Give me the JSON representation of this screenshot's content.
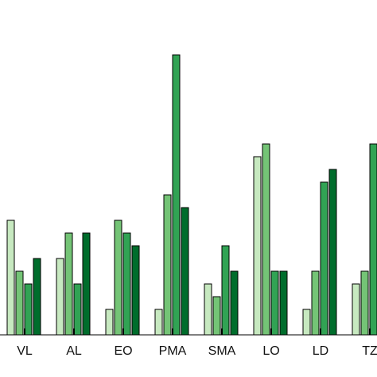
{
  "chart_data": {
    "type": "bar",
    "categories": [
      "VL",
      "AL",
      "EO",
      "PMA",
      "SMA",
      "LO",
      "LD",
      "TZ"
    ],
    "series": [
      {
        "color": "#c7e9c0",
        "values": [
          9,
          6,
          2,
          2,
          4,
          14,
          2,
          4
        ]
      },
      {
        "color": "#74c476",
        "values": [
          5,
          8,
          9,
          11,
          3,
          15,
          5,
          5
        ]
      },
      {
        "color": "#31a354",
        "values": [
          4,
          4,
          8,
          22,
          7,
          5,
          12,
          15
        ]
      },
      {
        "color": "#006d2c",
        "values": [
          6,
          8,
          7,
          10,
          5,
          5,
          13,
          null
        ]
      }
    ],
    "ylim": [
      0,
      26
    ]
  }
}
